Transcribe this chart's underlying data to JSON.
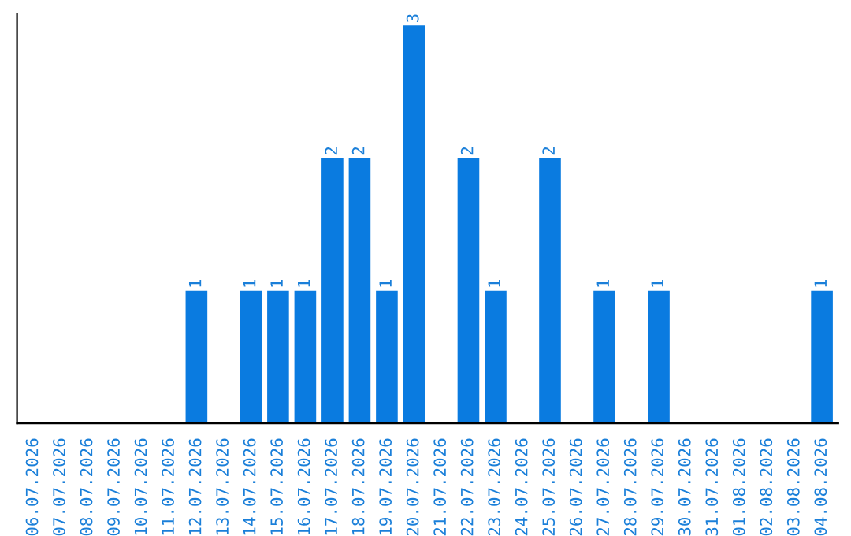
{
  "chart_data": {
    "type": "bar",
    "categories": [
      "06.07.2026",
      "07.07.2026",
      "08.07.2026",
      "09.07.2026",
      "10.07.2026",
      "11.07.2026",
      "12.07.2026",
      "13.07.2026",
      "14.07.2026",
      "15.07.2026",
      "16.07.2026",
      "17.07.2026",
      "18.07.2026",
      "19.07.2026",
      "20.07.2026",
      "21.07.2026",
      "22.07.2026",
      "23.07.2026",
      "24.07.2026",
      "25.07.2026",
      "26.07.2026",
      "27.07.2026",
      "28.07.2026",
      "29.07.2026",
      "30.07.2026",
      "31.07.2026",
      "01.08.2026",
      "02.08.2026",
      "03.08.2026",
      "04.08.2026"
    ],
    "values": [
      0,
      0,
      0,
      0,
      0,
      0,
      1,
      0,
      1,
      1,
      1,
      2,
      2,
      1,
      3,
      0,
      2,
      1,
      0,
      2,
      0,
      1,
      0,
      1,
      0,
      0,
      0,
      0,
      0,
      1
    ],
    "value_labels": [
      null,
      null,
      null,
      null,
      null,
      null,
      "1",
      null,
      "1",
      "1",
      "1",
      "2",
      "2",
      "1",
      "3",
      null,
      "2",
      "1",
      null,
      "2",
      null,
      "1",
      null,
      "1",
      null,
      null,
      null,
      null,
      null,
      "1"
    ],
    "color": "#0a7be0",
    "tick_labels": "x",
    "grid": false,
    "legend": false
  }
}
